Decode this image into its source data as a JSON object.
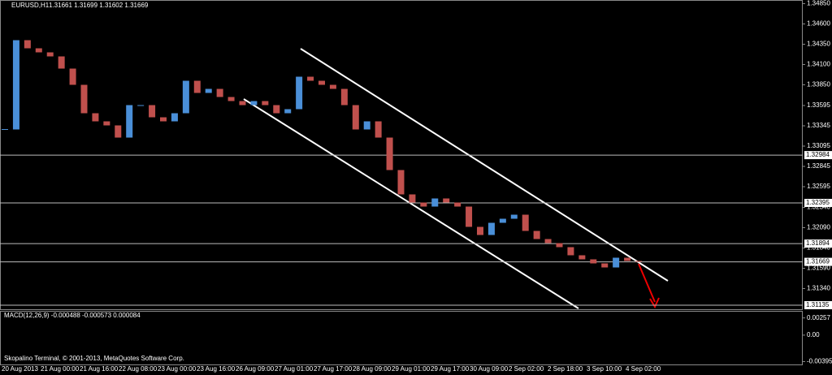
{
  "header": {
    "symbol": "EURUSD,H1",
    "quote": "1.31661 1.31699 1.31602 1.31669"
  },
  "chart_data": {
    "type": "candlestick",
    "values": [
      1.333,
      1.344,
      1.343,
      1.3425,
      1.342,
      1.3405,
      1.3385,
      1.335,
      1.334,
      1.3335,
      1.332,
      1.336,
      1.336,
      1.3345,
      1.334,
      1.335,
      1.339,
      1.3375,
      1.338,
      1.337,
      1.3365,
      1.336,
      1.3365,
      1.336,
      1.335,
      1.3355,
      1.3395,
      1.339,
      1.3385,
      1.338,
      1.336,
      1.333,
      1.334,
      1.332,
      1.328,
      1.325,
      1.324,
      1.3235,
      1.3245,
      1.324,
      1.3235,
      1.321,
      1.32,
      1.3215,
      1.322,
      1.3225,
      1.3205,
      1.3195,
      1.319,
      1.3185,
      1.3175,
      1.317,
      1.3165,
      1.316,
      1.3172,
      1.3168,
      1.3167
    ],
    "up_color": "#4a8fd8",
    "down_color": "#c0504d",
    "ylim": [
      1.31085,
      1.34895
    ],
    "yticks": [
      {
        "value": 1.3485,
        "label": "1.34850"
      },
      {
        "value": 1.346,
        "label": "1.34600"
      },
      {
        "value": 1.3435,
        "label": "1.34350"
      },
      {
        "value": 1.341,
        "label": "1.34100"
      },
      {
        "value": 1.3385,
        "label": "1.33850"
      },
      {
        "value": 1.33595,
        "label": "1.33595"
      },
      {
        "value": 1.33345,
        "label": "1.33345"
      },
      {
        "value": 1.33095,
        "label": "1.33095"
      },
      {
        "value": 1.32845,
        "label": "1.32845"
      },
      {
        "value": 1.32595,
        "label": "1.32595"
      },
      {
        "value": 1.3234,
        "label": "1.32340"
      },
      {
        "value": 1.3209,
        "label": "1.32090"
      },
      {
        "value": 1.3184,
        "label": "1.31840"
      },
      {
        "value": 1.3159,
        "label": "1.31590"
      },
      {
        "value": 1.3134,
        "label": "1.31340"
      }
    ],
    "levels": [
      {
        "value": 1.32984,
        "label": "1.32984"
      },
      {
        "value": 1.32395,
        "label": "1.32395"
      },
      {
        "value": 1.31894,
        "label": "1.31894"
      },
      {
        "value": 1.31669,
        "label": "1.31669"
      },
      {
        "value": 1.31135,
        "label": "1.31135"
      }
    ],
    "time_labels": [
      "20 Aug 2013",
      "21 Aug 00:00",
      "21 Aug 16:00",
      "22 Aug 08:00",
      "23 Aug 00:00",
      "23 Aug 16:00",
      "26 Aug 09:00",
      "27 Aug 01:00",
      "27 Aug 17:00",
      "28 Aug 09:00",
      "29 Aug 01:00",
      "29 Aug 17:00",
      "30 Aug 09:00",
      "2 Sep 02:00",
      "2 Sep 18:00",
      "3 Sep 10:00",
      "4 Sep 02:00"
    ]
  },
  "macd": {
    "label": "MACD(12,26,9) -0.000488 -0.000573 0.000084",
    "ylim": [
      -0.0045,
      0.0035
    ],
    "yticks": [
      {
        "value": 0.00257,
        "label": "0.00257"
      },
      {
        "value": 0,
        "label": "0.00"
      },
      {
        "value": -0.00395,
        "label": "-0.00395"
      }
    ]
  },
  "footer": "Skopalino Terminal, © 2001-2013, MetaQuotes Software Corp."
}
